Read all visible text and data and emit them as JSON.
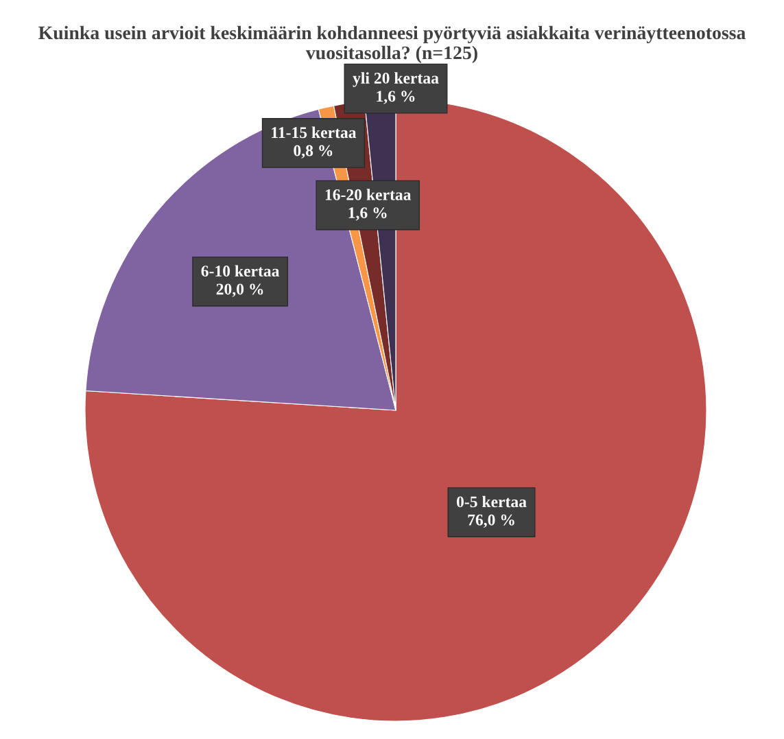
{
  "chart_data": {
    "type": "pie",
    "title": "Kuinka usein arvioit keskimäärin kohdanneesi pyörtyviä asiakkaita verinäytteenotossa vuositasolla? (n=125)",
    "categories": [
      "0-5 kertaa",
      "6-10 kertaa",
      "11-15 kertaa",
      "16-20 kertaa",
      "yli 20 kertaa"
    ],
    "values": [
      76.0,
      20.0,
      0.8,
      1.6,
      1.6
    ],
    "value_labels": [
      "76,0 %",
      "20,0 %",
      "0,8 %",
      "1,6 %",
      "1,6 %"
    ],
    "colors": [
      "#c0504d",
      "#8064a2",
      "#f79646",
      "#772c2a",
      "#3f3151"
    ],
    "legend": false
  }
}
